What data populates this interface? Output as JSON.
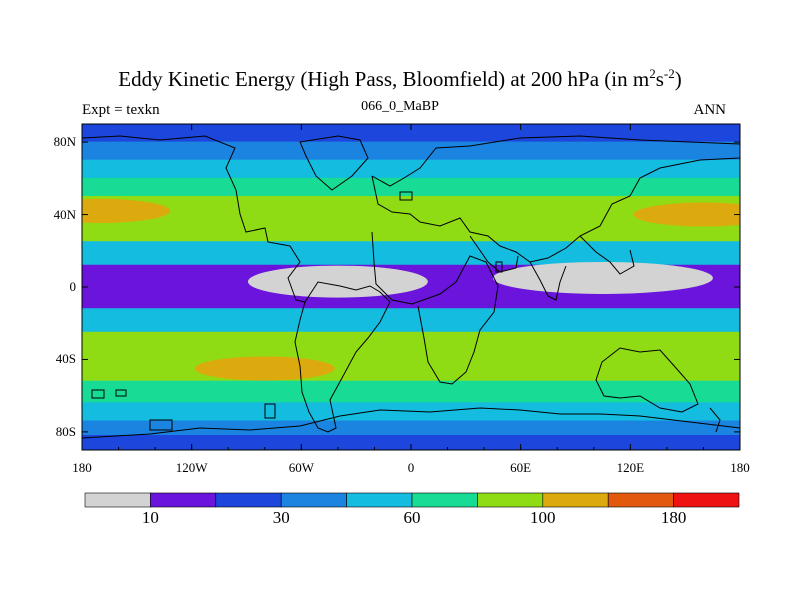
{
  "title": {
    "text": "Eddy Kinetic Energy (High Pass, Bloomfield) at 200 hPa (in m",
    "sup1": "2",
    "mid": "s",
    "sup2": "-2",
    "end": ")"
  },
  "subtitle_left": "Expt = texkn",
  "subtitle_center": "066_0_MaBP",
  "subtitle_right": "ANN",
  "lat_ticks": [
    "80N",
    "40N",
    "0",
    "40S",
    "80S"
  ],
  "lon_ticks": [
    "180",
    "120W",
    "60W",
    "0",
    "60E",
    "120E",
    "180"
  ],
  "colorbar": {
    "colors": [
      "#d3d3d3",
      "#6a14dc",
      "#1c46dc",
      "#1b84e0",
      "#14bce0",
      "#18dc96",
      "#90dc14",
      "#dcaa0e",
      "#e2580c",
      "#ee1212"
    ],
    "labels": [
      "10",
      "30",
      "60",
      "100",
      "180"
    ]
  },
  "chart_data": {
    "type": "heatmap",
    "title": "Eddy Kinetic Energy (High Pass, Bloomfield) at 200 hPa (in m2s-2)",
    "xlabel": "",
    "ylabel": "",
    "xlim": [
      -180,
      180
    ],
    "ylim": [
      -90,
      90
    ],
    "contour_levels": [
      10,
      20,
      30,
      45,
      60,
      80,
      100,
      140,
      180
    ],
    "colorbar_labels": [
      "10",
      "30",
      "60",
      "100",
      "180"
    ],
    "zonal_bands": [
      {
        "lat": [
          80,
          90
        ],
        "level": 20
      },
      {
        "lat": [
          70,
          80
        ],
        "level": 30
      },
      {
        "lat": [
          60,
          70
        ],
        "level": 45
      },
      {
        "lat": [
          50,
          60
        ],
        "level": 60
      },
      {
        "lat": [
          25,
          50
        ],
        "level": 80
      },
      {
        "lat": [
          12,
          25
        ],
        "level": 45
      },
      {
        "lat": [
          -12,
          12
        ],
        "level": 10
      },
      {
        "lat": [
          -25,
          -12
        ],
        "level": 45
      },
      {
        "lat": [
          -52,
          -25
        ],
        "level": 80
      },
      {
        "lat": [
          -64,
          -52
        ],
        "level": 60
      },
      {
        "lat": [
          -74,
          -64
        ],
        "level": 45
      },
      {
        "lat": [
          -82,
          -74
        ],
        "level": 30
      },
      {
        "lat": [
          -90,
          -82
        ],
        "level": 20
      }
    ],
    "maxima": [
      {
        "lon": -170,
        "lat": 42,
        "level": 100
      },
      {
        "lon": 160,
        "lat": 40,
        "level": 100
      },
      {
        "lon": -80,
        "lat": -45,
        "level": 100
      }
    ],
    "minima_below_10": [
      {
        "lon": -40,
        "lat": 3
      },
      {
        "lon": 105,
        "lat": 5
      }
    ]
  }
}
